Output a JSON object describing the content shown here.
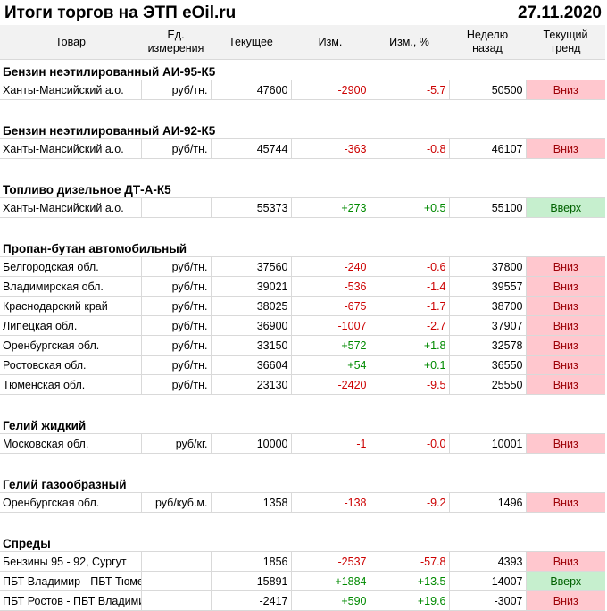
{
  "title": "Итоги торгов на ЭТП eOil.ru",
  "date": "27.11.2020",
  "colors": {
    "negative": "#cc0000",
    "positive": "#008a00",
    "down_bg": "#ffc7ce",
    "up_bg": "#c6efce"
  },
  "headers": {
    "product": "Товар",
    "unit_1": "Ед.",
    "unit_2": "измерения",
    "current": "Текущее",
    "change": "Изм.",
    "change_pct": "Изм., %",
    "week_ago_1": "Неделю",
    "week_ago_2": "назад",
    "trend_1": "Текущий",
    "trend_2": "тренд"
  },
  "sections": [
    {
      "title": "Бензин неэтилированный АИ-95-К5",
      "rows": [
        {
          "region": "Ханты-Мансийский а.о.",
          "unit": "руб/тн.",
          "current": "47600",
          "change": "-2900",
          "change_pct": "-5.7",
          "week_ago": "50500",
          "trend": "Вниз",
          "dir": "down"
        }
      ]
    },
    {
      "title": "Бензин неэтилированный АИ-92-К5",
      "rows": [
        {
          "region": "Ханты-Мансийский а.о.",
          "unit": "руб/тн.",
          "current": "45744",
          "change": "-363",
          "change_pct": "-0.8",
          "week_ago": "46107",
          "trend": "Вниз",
          "dir": "down"
        }
      ]
    },
    {
      "title": "Топливо дизельное ДТ-А-К5",
      "rows": [
        {
          "region": "Ханты-Мансийский а.о.",
          "unit": "",
          "current": "55373",
          "change": "+273",
          "change_pct": "+0.5",
          "week_ago": "55100",
          "trend": "Вверх",
          "dir": "up"
        }
      ]
    },
    {
      "title": "Пропан-бутан автомобильный",
      "rows": [
        {
          "region": "Белгородская обл.",
          "unit": "руб/тн.",
          "current": "37560",
          "change": "-240",
          "change_pct": "-0.6",
          "week_ago": "37800",
          "trend": "Вниз",
          "dir": "down"
        },
        {
          "region": "Владимирская обл.",
          "unit": "руб/тн.",
          "current": "39021",
          "change": "-536",
          "change_pct": "-1.4",
          "week_ago": "39557",
          "trend": "Вниз",
          "dir": "down"
        },
        {
          "region": "Краснодарский край",
          "unit": "руб/тн.",
          "current": "38025",
          "change": "-675",
          "change_pct": "-1.7",
          "week_ago": "38700",
          "trend": "Вниз",
          "dir": "down"
        },
        {
          "region": "Липецкая обл.",
          "unit": "руб/тн.",
          "current": "36900",
          "change": "-1007",
          "change_pct": "-2.7",
          "week_ago": "37907",
          "trend": "Вниз",
          "dir": "down"
        },
        {
          "region": "Оренбургская обл.",
          "unit": "руб/тн.",
          "current": "33150",
          "change": "+572",
          "change_pct": "+1.8",
          "week_ago": "32578",
          "trend": "Вниз",
          "dir": "down"
        },
        {
          "region": "Ростовская обл.",
          "unit": "руб/тн.",
          "current": "36604",
          "change": "+54",
          "change_pct": "+0.1",
          "week_ago": "36550",
          "trend": "Вниз",
          "dir": "down"
        },
        {
          "region": "Тюменская обл.",
          "unit": "руб/тн.",
          "current": "23130",
          "change": "-2420",
          "change_pct": "-9.5",
          "week_ago": "25550",
          "trend": "Вниз",
          "dir": "down"
        }
      ]
    },
    {
      "title": "Гелий жидкий",
      "rows": [
        {
          "region": "Московская обл.",
          "unit": "руб/кг.",
          "current": "10000",
          "change": "-1",
          "change_pct": "-0.0",
          "week_ago": "10001",
          "trend": "Вниз",
          "dir": "down"
        }
      ]
    },
    {
      "title": "Гелий газообразный",
      "rows": [
        {
          "region": "Оренбургская обл.",
          "unit": "руб/куб.м.",
          "current": "1358",
          "change": "-138",
          "change_pct": "-9.2",
          "week_ago": "1496",
          "trend": "Вниз",
          "dir": "down"
        }
      ]
    },
    {
      "title": "Спреды",
      "rows": [
        {
          "region": "Бензины 95 - 92, Сургут",
          "unit": "",
          "current": "1856",
          "change": "-2537",
          "change_pct": "-57.8",
          "week_ago": "4393",
          "trend": "Вниз",
          "dir": "down"
        },
        {
          "region": "ПБТ Владимир - ПБТ Тюмень",
          "unit": "",
          "current": "15891",
          "change": "+1884",
          "change_pct": "+13.5",
          "week_ago": "14007",
          "trend": "Вверх",
          "dir": "up"
        },
        {
          "region": "ПБТ Ростов - ПБТ Владимир",
          "unit": "",
          "current": "-2417",
          "change": "+590",
          "change_pct": "+19.6",
          "week_ago": "-3007",
          "trend": "Вниз",
          "dir": "down"
        }
      ]
    }
  ]
}
